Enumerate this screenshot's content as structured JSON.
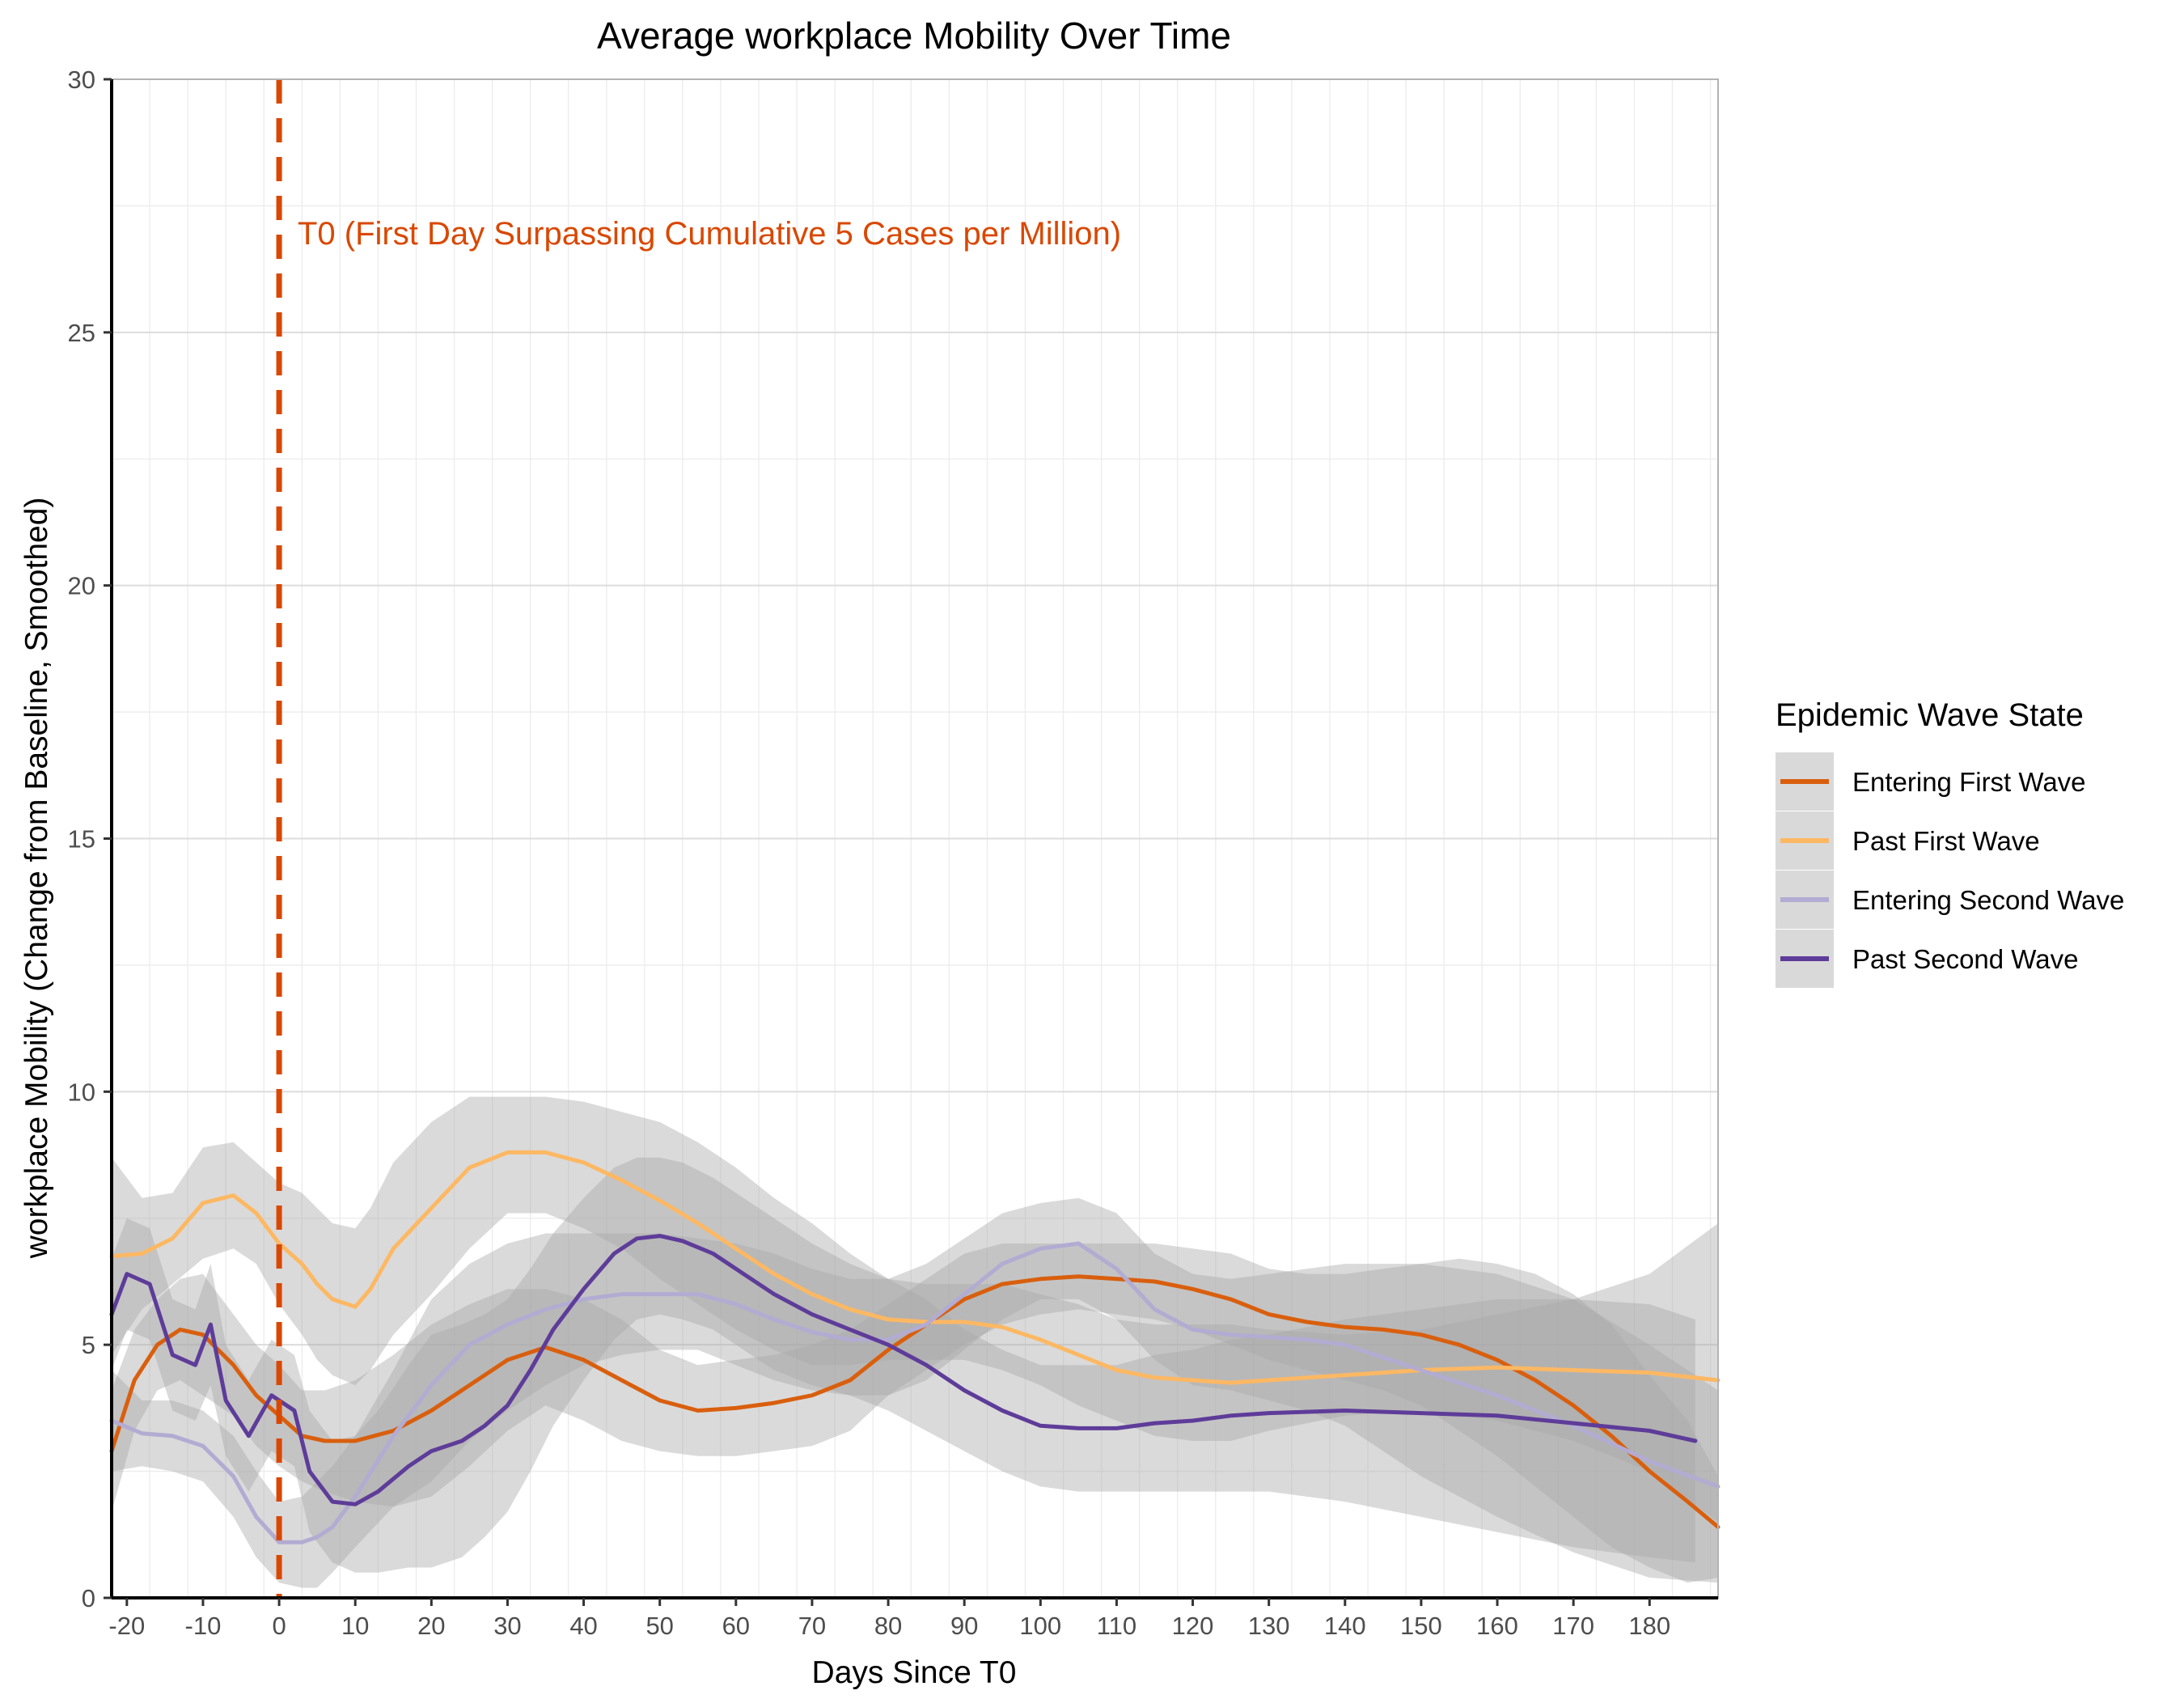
{
  "chart_data": {
    "type": "line",
    "title": "Average workplace Mobility Over Time",
    "xlabel": "Days Since T0",
    "ylabel": "workplace Mobility (Change from Baseline, Smoothed)",
    "xlim": [
      -22,
      189
    ],
    "ylim": [
      0,
      30
    ],
    "x_ticks": [
      "-20",
      "-10",
      "0",
      "10",
      "20",
      "30",
      "40",
      "50",
      "60",
      "70",
      "80",
      "90",
      "100",
      "110",
      "120",
      "130",
      "140",
      "150",
      "160",
      "170",
      "180"
    ],
    "x_tick_values": [
      -20,
      -10,
      0,
      10,
      20,
      30,
      40,
      50,
      60,
      70,
      80,
      90,
      100,
      110,
      120,
      130,
      140,
      150,
      160,
      170,
      180
    ],
    "y_ticks": [
      "0",
      "5",
      "10",
      "15",
      "20",
      "25",
      "30"
    ],
    "y_tick_values": [
      0,
      5,
      10,
      15,
      20,
      25,
      30
    ],
    "grid": true,
    "legend": {
      "title": "Epidemic Wave State",
      "position": "right"
    },
    "annotation": {
      "x": 0,
      "text": "T0 (First Day Surpassing Cumulative 5 Cases per Million)",
      "color": "#d94801",
      "style": "dashed"
    },
    "series": [
      {
        "name": "Entering First Wave",
        "color": "#d95f0e",
        "x": [
          -22,
          -19,
          -16,
          -13,
          -10,
          -6,
          -3,
          0,
          3,
          6,
          10,
          15,
          20,
          25,
          30,
          35,
          40,
          45,
          50,
          55,
          60,
          65,
          70,
          75,
          80,
          85,
          90,
          95,
          100,
          105,
          110,
          115,
          120,
          125,
          130,
          135,
          140,
          145,
          150,
          155,
          160,
          165,
          170,
          175,
          180,
          185,
          189
        ],
        "y": [
          2.9,
          4.3,
          5.0,
          5.3,
          5.2,
          4.6,
          4.0,
          3.6,
          3.2,
          3.1,
          3.1,
          3.3,
          3.7,
          4.2,
          4.7,
          4.95,
          4.7,
          4.3,
          3.9,
          3.7,
          3.75,
          3.85,
          4.0,
          4.3,
          4.9,
          5.4,
          5.9,
          6.2,
          6.3,
          6.35,
          6.3,
          6.25,
          6.1,
          5.9,
          5.6,
          5.45,
          5.35,
          5.3,
          5.2,
          5.0,
          4.7,
          4.3,
          3.8,
          3.2,
          2.5,
          1.9,
          1.4
        ],
        "lower": [
          1.7,
          3.3,
          4.1,
          4.3,
          4.0,
          3.6,
          3.0,
          2.6,
          2.3,
          2.1,
          1.9,
          1.8,
          2.0,
          2.6,
          3.3,
          3.8,
          3.5,
          3.1,
          2.9,
          2.8,
          2.8,
          2.9,
          3.0,
          3.3,
          4.0,
          4.5,
          5.0,
          5.4,
          5.6,
          5.7,
          5.6,
          5.5,
          5.3,
          5.0,
          4.7,
          4.5,
          4.3,
          4.1,
          3.8,
          3.3,
          2.8,
          2.2,
          1.6,
          1.0,
          0.6,
          0.3,
          0.4
        ],
        "upper": [
          4.1,
          5.3,
          5.9,
          6.3,
          6.4,
          5.6,
          5.0,
          4.6,
          4.1,
          4.1,
          4.3,
          4.8,
          5.4,
          5.8,
          6.1,
          6.1,
          5.9,
          5.5,
          4.9,
          4.6,
          4.7,
          4.8,
          5.0,
          5.3,
          5.8,
          6.3,
          6.8,
          7.0,
          7.0,
          7.0,
          7.0,
          7.0,
          6.9,
          6.8,
          6.5,
          6.4,
          6.4,
          6.5,
          6.6,
          6.7,
          6.6,
          6.4,
          6.0,
          5.4,
          4.4,
          3.5,
          2.4
        ]
      },
      {
        "name": "Past First Wave",
        "color": "#fdb863",
        "x": [
          -22,
          -18,
          -14,
          -10,
          -6,
          -3,
          0,
          3,
          5,
          7,
          10,
          12,
          15,
          20,
          25,
          30,
          35,
          40,
          45,
          50,
          55,
          60,
          65,
          70,
          75,
          80,
          85,
          90,
          95,
          100,
          105,
          110,
          115,
          120,
          125,
          130,
          140,
          150,
          160,
          170,
          180,
          189
        ],
        "y": [
          6.75,
          6.8,
          7.1,
          7.8,
          7.95,
          7.6,
          7.0,
          6.6,
          6.2,
          5.9,
          5.75,
          6.1,
          6.9,
          7.7,
          8.5,
          8.8,
          8.8,
          8.6,
          8.25,
          7.85,
          7.4,
          6.9,
          6.4,
          6.0,
          5.7,
          5.5,
          5.45,
          5.45,
          5.35,
          5.1,
          4.8,
          4.5,
          4.35,
          4.3,
          4.25,
          4.3,
          4.4,
          4.5,
          4.55,
          4.5,
          4.45,
          4.3
        ],
        "lower": [
          4.8,
          5.7,
          6.2,
          6.7,
          6.9,
          6.6,
          5.8,
          5.2,
          4.7,
          4.4,
          4.2,
          4.5,
          5.2,
          6.0,
          6.9,
          7.6,
          7.6,
          7.3,
          6.9,
          6.3,
          5.8,
          5.3,
          4.9,
          4.6,
          4.6,
          4.7,
          4.7,
          4.7,
          4.5,
          4.2,
          3.8,
          3.5,
          3.2,
          3.1,
          3.1,
          3.3,
          3.6,
          3.7,
          3.5,
          3.1,
          2.5,
          1.5
        ],
        "upper": [
          8.7,
          7.9,
          8.0,
          8.9,
          9.0,
          8.6,
          8.2,
          8.0,
          7.7,
          7.4,
          7.3,
          7.7,
          8.6,
          9.4,
          9.9,
          9.9,
          9.9,
          9.8,
          9.6,
          9.4,
          9.0,
          8.5,
          7.9,
          7.4,
          6.8,
          6.3,
          6.2,
          6.2,
          6.2,
          6.0,
          5.8,
          5.5,
          5.4,
          5.4,
          5.4,
          5.3,
          5.2,
          5.3,
          5.6,
          5.9,
          6.4,
          7.4
        ]
      },
      {
        "name": "Entering Second Wave",
        "color": "#b2abd2",
        "x": [
          -22,
          -18,
          -14,
          -10,
          -6,
          -3,
          0,
          3,
          5,
          7,
          10,
          15,
          20,
          25,
          30,
          35,
          40,
          45,
          50,
          55,
          60,
          65,
          70,
          75,
          80,
          85,
          90,
          95,
          100,
          105,
          110,
          115,
          120,
          125,
          130,
          135,
          140,
          150,
          160,
          170,
          180,
          189
        ],
        "y": [
          3.5,
          3.25,
          3.2,
          3.0,
          2.4,
          1.6,
          1.1,
          1.1,
          1.2,
          1.4,
          2.0,
          3.2,
          4.2,
          5.0,
          5.4,
          5.7,
          5.9,
          6.0,
          6.0,
          6.0,
          5.8,
          5.5,
          5.25,
          5.1,
          5.1,
          5.4,
          6.0,
          6.6,
          6.9,
          7.0,
          6.5,
          5.7,
          5.3,
          5.2,
          5.15,
          5.1,
          5.0,
          4.5,
          4.0,
          3.4,
          2.7,
          2.2
        ],
        "lower": [
          2.5,
          2.6,
          2.5,
          2.3,
          1.6,
          0.8,
          0.3,
          0.2,
          0.2,
          0.5,
          1.0,
          1.8,
          2.3,
          3.1,
          3.7,
          4.2,
          4.6,
          4.8,
          4.9,
          4.9,
          4.6,
          4.3,
          4.1,
          4.0,
          4.0,
          4.3,
          4.9,
          5.5,
          5.9,
          5.9,
          5.5,
          4.7,
          4.2,
          4.1,
          3.9,
          3.7,
          3.4,
          2.4,
          1.6,
          0.9,
          0.4,
          0.3
        ],
        "upper": [
          4.5,
          3.9,
          3.9,
          3.7,
          3.2,
          2.5,
          1.9,
          2.0,
          2.3,
          2.6,
          3.2,
          4.5,
          5.9,
          6.6,
          7.0,
          7.2,
          7.2,
          7.2,
          7.2,
          7.1,
          7.0,
          6.8,
          6.5,
          6.3,
          6.3,
          6.6,
          7.1,
          7.6,
          7.8,
          7.9,
          7.6,
          6.8,
          6.4,
          6.3,
          6.4,
          6.5,
          6.6,
          6.6,
          6.4,
          5.9,
          5.0,
          4.1
        ]
      },
      {
        "name": "Past Second Wave",
        "color": "#5e3c99",
        "x": [
          -22,
          -20,
          -17,
          -14,
          -11,
          -9,
          -7,
          -4,
          -1,
          2,
          4,
          7,
          10,
          13,
          17,
          20,
          24,
          27,
          30,
          33,
          36,
          40,
          44,
          47,
          50,
          53,
          57,
          61,
          65,
          70,
          75,
          80,
          85,
          90,
          95,
          100,
          105,
          110,
          115,
          120,
          125,
          130,
          140,
          150,
          160,
          170,
          180,
          186
        ],
        "y": [
          5.6,
          6.4,
          6.2,
          4.8,
          4.6,
          5.4,
          3.9,
          3.2,
          4.0,
          3.7,
          2.5,
          1.9,
          1.85,
          2.1,
          2.6,
          2.9,
          3.1,
          3.4,
          3.8,
          4.5,
          5.3,
          6.1,
          6.8,
          7.1,
          7.15,
          7.05,
          6.8,
          6.4,
          6.0,
          5.6,
          5.3,
          5.0,
          4.6,
          4.1,
          3.7,
          3.4,
          3.35,
          3.35,
          3.45,
          3.5,
          3.6,
          3.65,
          3.7,
          3.65,
          3.6,
          3.45,
          3.3,
          3.1
        ],
        "lower": [
          4.5,
          5.3,
          5.1,
          3.7,
          3.5,
          4.2,
          2.8,
          2.1,
          2.9,
          2.6,
          1.3,
          0.7,
          0.5,
          0.5,
          0.6,
          0.6,
          0.8,
          1.2,
          1.7,
          2.5,
          3.4,
          4.3,
          5.1,
          5.5,
          5.6,
          5.5,
          5.3,
          4.9,
          4.5,
          4.2,
          4.0,
          3.7,
          3.3,
          2.9,
          2.5,
          2.2,
          2.1,
          2.1,
          2.1,
          2.1,
          2.1,
          2.1,
          1.9,
          1.6,
          1.3,
          1.0,
          0.8,
          0.7
        ],
        "upper": [
          6.7,
          7.5,
          7.3,
          5.9,
          5.7,
          6.6,
          5.0,
          4.3,
          5.1,
          4.8,
          3.7,
          3.1,
          3.2,
          3.7,
          4.6,
          5.2,
          5.4,
          5.6,
          5.9,
          6.5,
          7.2,
          7.9,
          8.5,
          8.7,
          8.7,
          8.6,
          8.3,
          7.9,
          7.5,
          7.0,
          6.6,
          6.3,
          5.9,
          5.3,
          4.9,
          4.6,
          4.6,
          4.6,
          4.8,
          4.9,
          5.1,
          5.2,
          5.5,
          5.7,
          5.9,
          5.9,
          5.8,
          5.5
        ]
      }
    ]
  }
}
